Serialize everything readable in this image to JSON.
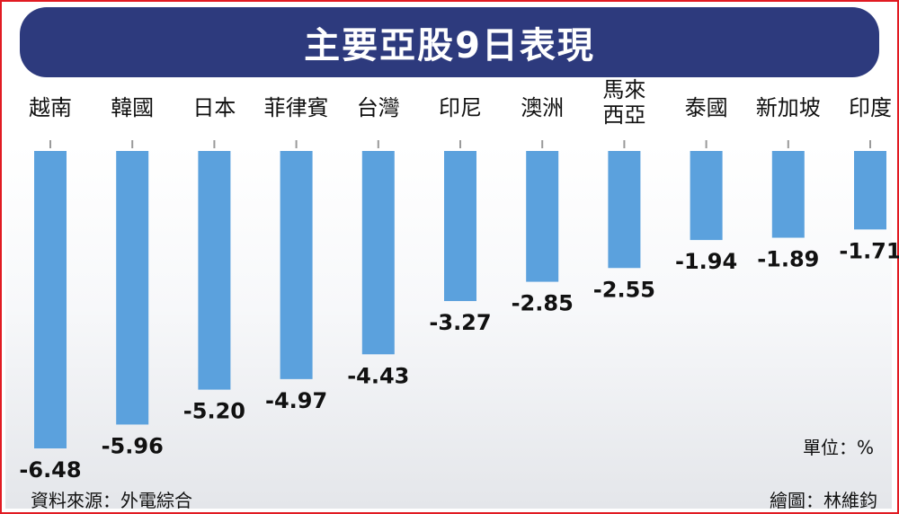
{
  "title": "主要亞股9日表現",
  "unit_label": "單位：%",
  "source_label": "資料來源：外電綜合",
  "credit_label": "繪圖：林維鈞",
  "colors": {
    "bar": "#5ba1dd",
    "title_bg": "#2d3a7d",
    "border": "#e11b22"
  },
  "chart_data": {
    "type": "bar",
    "title": "主要亞股9日表現",
    "categories": [
      "越南",
      "韓國",
      "日本",
      "菲律賓",
      "台灣",
      "印尼",
      "澳洲",
      "馬來西亞",
      "泰國",
      "新加坡",
      "印度"
    ],
    "category_lines": [
      [
        "越南"
      ],
      [
        "韓國"
      ],
      [
        "日本"
      ],
      [
        "菲律賓"
      ],
      [
        "台灣"
      ],
      [
        "印尼"
      ],
      [
        "澳洲"
      ],
      [
        "馬來",
        "西亞"
      ],
      [
        "泰國"
      ],
      [
        "新加坡"
      ],
      [
        "印度"
      ]
    ],
    "values": [
      -6.48,
      -5.96,
      -5.2,
      -4.97,
      -4.43,
      -3.27,
      -2.85,
      -2.55,
      -1.94,
      -1.89,
      -1.71
    ],
    "value_labels": [
      "-6.48",
      "-5.96",
      "-5.20",
      "-4.97",
      "-4.43",
      "-3.27",
      "-2.85",
      "-2.55",
      "-1.94",
      "-1.89",
      "-1.71"
    ],
    "unit": "%",
    "ylim": [
      -6.5,
      0
    ],
    "grid": false,
    "legend": "none"
  }
}
